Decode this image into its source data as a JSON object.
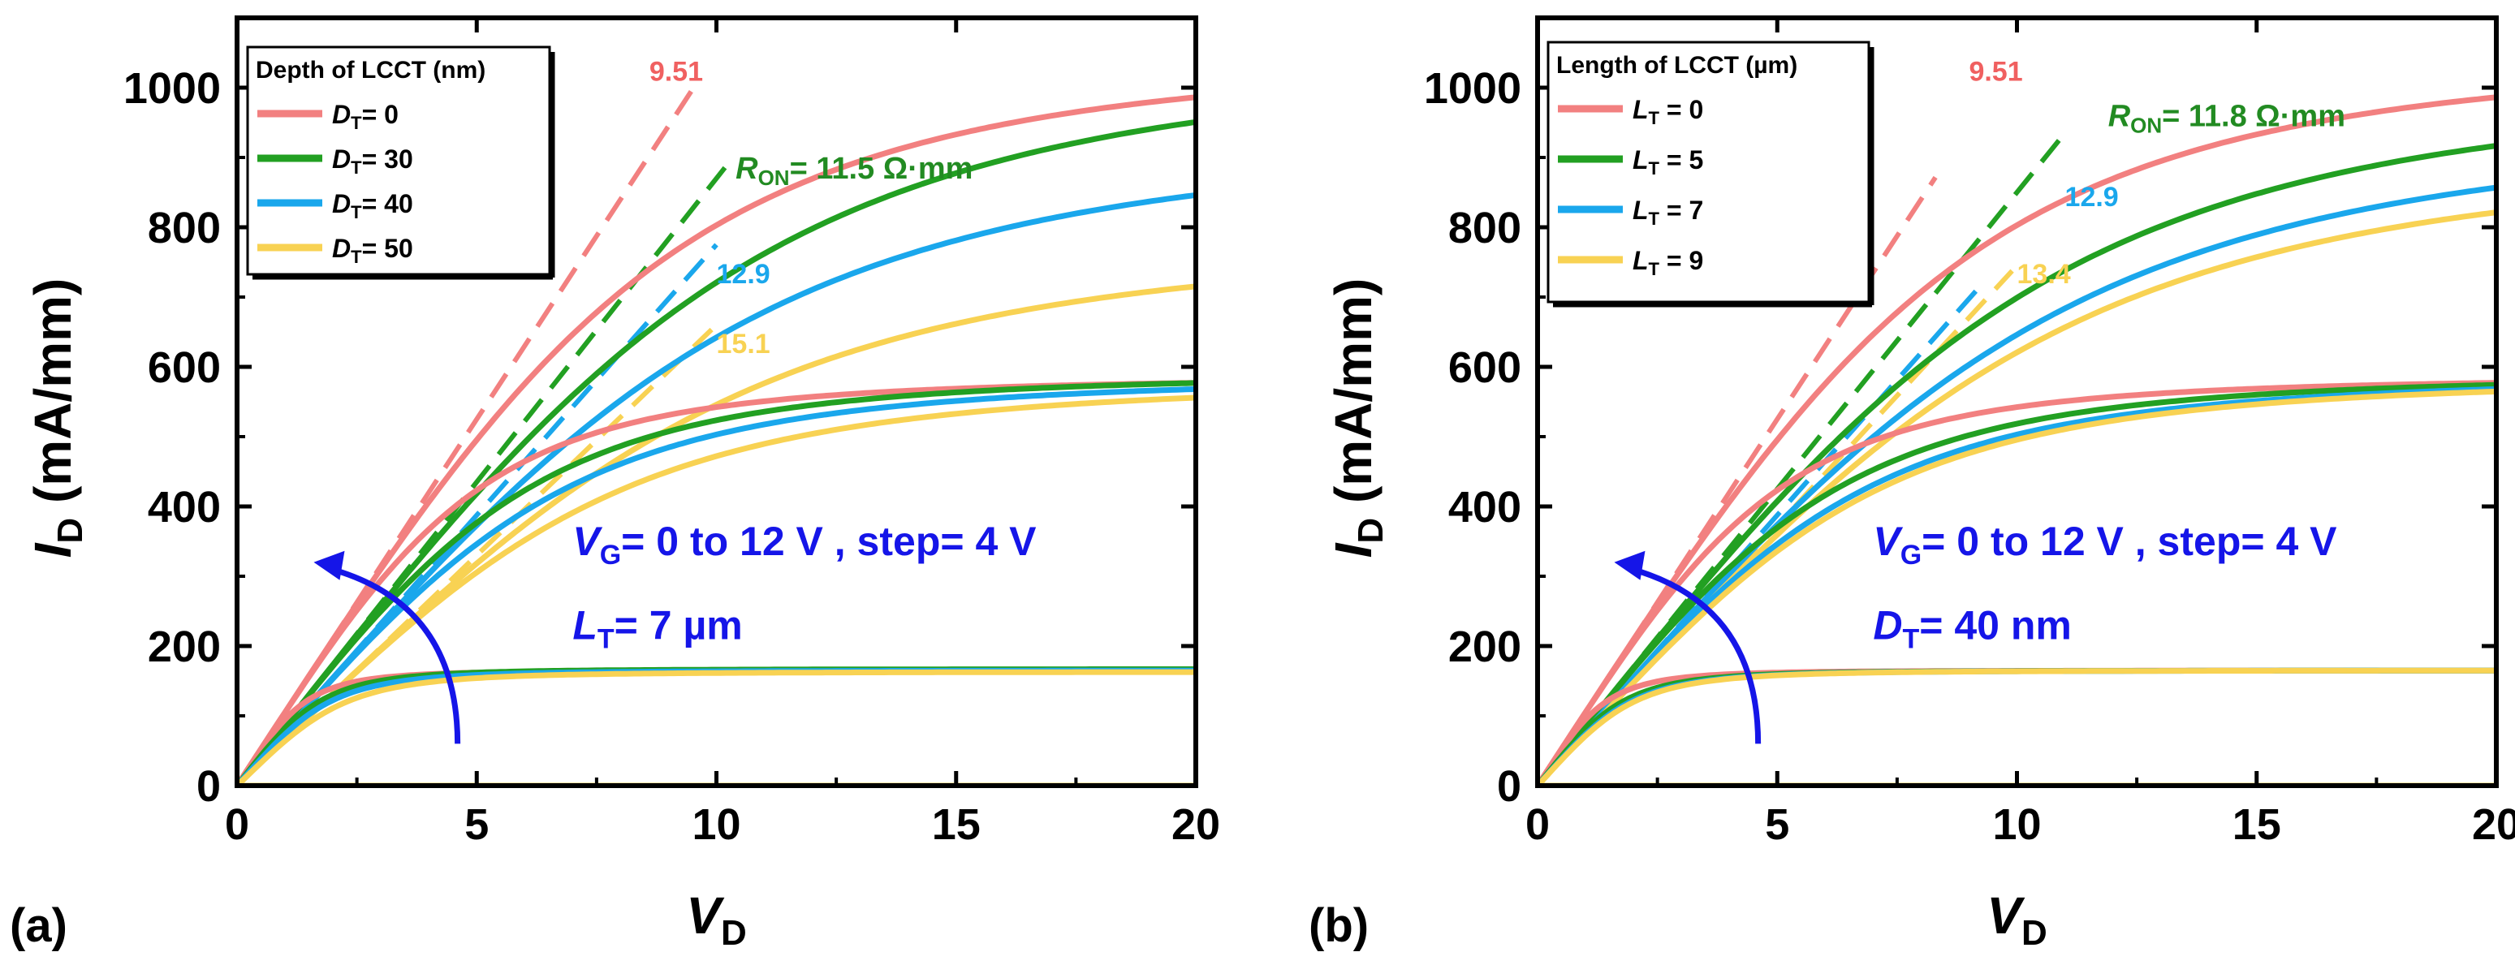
{
  "chart_data": [
    {
      "type": "line",
      "panel_label": "(a)",
      "xlabel": {
        "symbol": "V",
        "sub": "D",
        "unit": " (V)"
      },
      "ylabel": {
        "symbol": "I",
        "sub": "D",
        "unit": " (mA/mm)"
      },
      "xlim": [
        0,
        20
      ],
      "ylim": [
        0,
        1100
      ],
      "xticks": [
        0,
        5,
        10,
        15,
        20
      ],
      "yticks": [
        0,
        200,
        400,
        600,
        800,
        1000
      ],
      "legend": {
        "title": "Depth of LCCT   (nm)",
        "position": "top-left",
        "entries": [
          {
            "symbol": "D",
            "sub": "T",
            "rest": "= 0",
            "color": "#F28080"
          },
          {
            "symbol": "D",
            "sub": "T",
            "rest": "= 30",
            "color": "#22A022"
          },
          {
            "symbol": "D",
            "sub": "T",
            "rest": "= 40",
            "color": "#1AA7EC"
          },
          {
            "symbol": "D",
            "sub": "T",
            "rest": "= 50",
            "color": "#F8D253"
          }
        ]
      },
      "condition": {
        "line1": {
          "symbol": "V",
          "sub": "G",
          "rest": "= 0 to 12 V , step= 4 V"
        },
        "line2": {
          "symbol": "L",
          "sub": "T",
          "rest": "= 7 µm"
        },
        "color": "#1515E8"
      },
      "ron_label": {
        "symbol": "R",
        "sub": "ON",
        "rest": "= 11.5 Ω·mm",
        "color": "#228B22"
      },
      "ron_values": [
        {
          "text": "9.51",
          "color": "#F06060"
        },
        {
          "text": "12.9",
          "color": "#1AA7EC"
        },
        {
          "text": "15.1",
          "color": "#F8D253"
        }
      ],
      "series": [
        {
          "name": "DT=0",
          "color": "#F28080",
          "vg": 12,
          "isat": 1045,
          "ron": 9.51,
          "vsat": 14
        },
        {
          "name": "DT=30",
          "color": "#22A022",
          "vg": 12,
          "isat": 1040,
          "ron": 11.5,
          "vsat": 20.5
        },
        {
          "name": "DT=40",
          "color": "#1AA7EC",
          "vg": 12,
          "isat": 925,
          "ron": 12.9,
          "vsat": 25
        },
        {
          "name": "DT=50",
          "color": "#F8D253",
          "vg": 12,
          "isat": 780,
          "ron": 15.1,
          "vsat": 28
        },
        {
          "name": "DT=0",
          "color": "#F28080",
          "vg": 8,
          "isat": 585,
          "ron": 9.51,
          "vsat": 7.6
        },
        {
          "name": "DT=30",
          "color": "#22A022",
          "vg": 8,
          "isat": 590,
          "ron": 11.5,
          "vsat": 10.5
        },
        {
          "name": "DT=40",
          "color": "#1AA7EC",
          "vg": 8,
          "isat": 585,
          "ron": 12.9,
          "vsat": 11.5
        },
        {
          "name": "DT=50",
          "color": "#F8D253",
          "vg": 8,
          "isat": 580,
          "ron": 15.1,
          "vsat": 13
        },
        {
          "name": "DT=0",
          "color": "#F28080",
          "vg": 4,
          "isat": 165,
          "ron": 9.51,
          "vsat": 3.8
        },
        {
          "name": "DT=30",
          "color": "#22A022",
          "vg": 4,
          "isat": 167,
          "ron": 11.5,
          "vsat": 4.2
        },
        {
          "name": "DT=40",
          "color": "#1AA7EC",
          "vg": 4,
          "isat": 165,
          "ron": 12.9,
          "vsat": 4.6
        },
        {
          "name": "DT=50",
          "color": "#F8D253",
          "vg": 4,
          "isat": 163,
          "ron": 15.1,
          "vsat": 5.2
        },
        {
          "name": "VG=0",
          "color": "#F8D253",
          "vg": 0,
          "isat": 0,
          "ron": 1,
          "vsat": 1
        }
      ],
      "fits": [
        {
          "color": "#F28080",
          "slope": 105,
          "x_end": 9.6
        },
        {
          "color": "#22A022",
          "slope": 87,
          "x_end": 10.2
        },
        {
          "color": "#1AA7EC",
          "slope": 77.5,
          "x_end": 10.0
        },
        {
          "color": "#F8D253",
          "slope": 66,
          "x_end": 9.9
        }
      ]
    },
    {
      "type": "line",
      "panel_label": "(b)",
      "xlabel": {
        "symbol": "V",
        "sub": "D",
        "unit": " (V)"
      },
      "ylabel": {
        "symbol": "I",
        "sub": "D",
        "unit": " (mA/mm)"
      },
      "xlim": [
        0,
        20
      ],
      "ylim": [
        0,
        1100
      ],
      "xticks": [
        0,
        5,
        10,
        15,
        20
      ],
      "yticks": [
        0,
        200,
        400,
        600,
        800,
        1000
      ],
      "legend": {
        "title": "Length of LCCT (µm)",
        "position": "top-left",
        "entries": [
          {
            "symbol": "L",
            "sub": "T",
            "rest": " = 0",
            "color": "#F28080"
          },
          {
            "symbol": "L",
            "sub": "T",
            "rest": " = 5",
            "color": "#22A022"
          },
          {
            "symbol": "L",
            "sub": "T",
            "rest": " = 7",
            "color": "#1AA7EC"
          },
          {
            "symbol": "L",
            "sub": "T",
            "rest": " = 9",
            "color": "#F8D253"
          }
        ]
      },
      "condition": {
        "line1": {
          "symbol": "V",
          "sub": "G",
          "rest": "= 0 to 12 V , step= 4 V"
        },
        "line2": {
          "symbol": "D",
          "sub": "T",
          "rest": "= 40 nm"
        },
        "color": "#1515E8"
      },
      "ron_label": {
        "symbol": "R",
        "sub": "ON",
        "rest": "= 11.8 Ω·mm",
        "color": "#228B22"
      },
      "ron_values": [
        {
          "text": "9.51",
          "color": "#F06060"
        },
        {
          "text": "12.9",
          "color": "#1AA7EC"
        },
        {
          "text": "13.4",
          "color": "#F8D253"
        }
      ],
      "series": [
        {
          "name": "LT=0",
          "color": "#F28080",
          "vg": 12,
          "isat": 1045,
          "ron": 9.51,
          "vsat": 14
        },
        {
          "name": "LT=5",
          "color": "#22A022",
          "vg": 12,
          "isat": 1000,
          "ron": 11.8,
          "vsat": 26
        },
        {
          "name": "LT=7",
          "color": "#1AA7EC",
          "vg": 12,
          "isat": 940,
          "ron": 12.9,
          "vsat": 25
        },
        {
          "name": "LT=9",
          "color": "#F8D253",
          "vg": 12,
          "isat": 900,
          "ron": 13.4,
          "vsat": 25
        },
        {
          "name": "LT=0",
          "color": "#F28080",
          "vg": 8,
          "isat": 585,
          "ron": 9.51,
          "vsat": 7.5
        },
        {
          "name": "LT=5",
          "color": "#22A022",
          "vg": 8,
          "isat": 588,
          "ron": 11.8,
          "vsat": 10.5
        },
        {
          "name": "LT=7",
          "color": "#1AA7EC",
          "vg": 8,
          "isat": 585,
          "ron": 12.9,
          "vsat": 11.5
        },
        {
          "name": "LT=9",
          "color": "#F8D253",
          "vg": 8,
          "isat": 583,
          "ron": 13.4,
          "vsat": 12
        },
        {
          "name": "LT=0",
          "color": "#F28080",
          "vg": 4,
          "isat": 165,
          "ron": 9.51,
          "vsat": 3.8
        },
        {
          "name": "LT=5",
          "color": "#22A022",
          "vg": 4,
          "isat": 165,
          "ron": 11.8,
          "vsat": 4.2
        },
        {
          "name": "LT=7",
          "color": "#1AA7EC",
          "vg": 4,
          "isat": 165,
          "ron": 12.9,
          "vsat": 4.6
        },
        {
          "name": "LT=9",
          "color": "#F8D253",
          "vg": 4,
          "isat": 165,
          "ron": 13.4,
          "vsat": 4.8
        },
        {
          "name": "VG=0",
          "color": "#F8D253",
          "vg": 0,
          "isat": 0,
          "ron": 1,
          "vsat": 1
        }
      ],
      "fits": [
        {
          "color": "#F28080",
          "slope": 105,
          "x_end": 8.3
        },
        {
          "color": "#22A022",
          "slope": 85,
          "x_end": 11.0
        },
        {
          "color": "#1AA7EC",
          "slope": 77.5,
          "x_end": 9.3
        },
        {
          "color": "#F8D253",
          "slope": 74.5,
          "x_end": 9.9
        }
      ]
    }
  ]
}
